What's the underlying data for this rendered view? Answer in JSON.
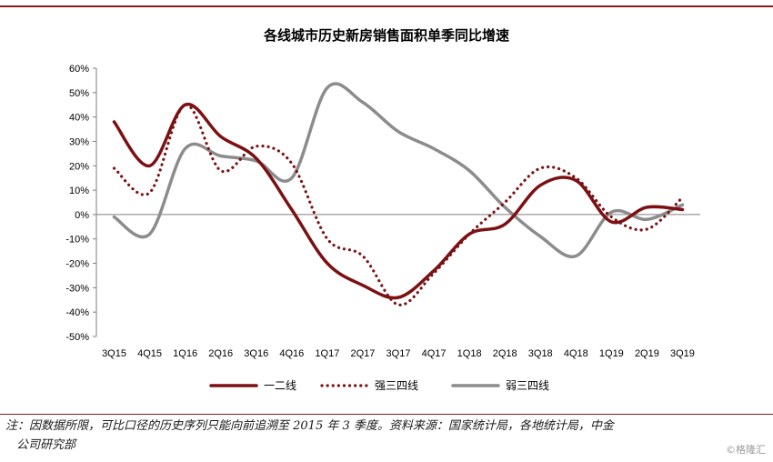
{
  "chart_data": {
    "type": "line",
    "title": "各线城市历史新房销售面积单季同比增速",
    "categories": [
      "3Q15",
      "4Q15",
      "1Q16",
      "2Q16",
      "3Q16",
      "4Q16",
      "1Q17",
      "2Q17",
      "3Q17",
      "4Q17",
      "1Q18",
      "2Q18",
      "3Q18",
      "4Q18",
      "1Q19",
      "2Q19",
      "3Q19"
    ],
    "y_ticks": [
      "60%",
      "50%",
      "40%",
      "30%",
      "20%",
      "10%",
      "0%",
      "-10%",
      "-20%",
      "-30%",
      "-40%",
      "-50%"
    ],
    "ylim": [
      -50,
      60
    ],
    "y_unit": "%",
    "grid": false,
    "legend_position": "bottom",
    "series": [
      {
        "name": "一二线",
        "style": "solid",
        "color": "#7b1113",
        "values": [
          38,
          20,
          45,
          32,
          23,
          2,
          -20,
          -29,
          -34,
          -23,
          -8,
          -4,
          12,
          14,
          -3,
          3,
          2
        ]
      },
      {
        "name": "强三四线",
        "style": "dotted",
        "color": "#7b1113",
        "values": [
          19,
          9,
          45,
          18,
          28,
          21,
          -10,
          -17,
          -37,
          -24,
          -8,
          5,
          19,
          15,
          -1,
          -6,
          7
        ]
      },
      {
        "name": "弱三四线",
        "style": "solid",
        "color": "#8c8c8c",
        "values": [
          -1,
          -8,
          27,
          24,
          22,
          15,
          52,
          46,
          34,
          27,
          18,
          3,
          -9,
          -17,
          1,
          -2,
          4
        ]
      }
    ]
  },
  "footnote": {
    "line1": "注：因数据所限，可比口径的历史序列只能向前追溯至 2015 年 3 季度。资料来源：国家统计局，各地统计局，中金",
    "line2": "公司研究部"
  },
  "watermark": "©格隆汇"
}
